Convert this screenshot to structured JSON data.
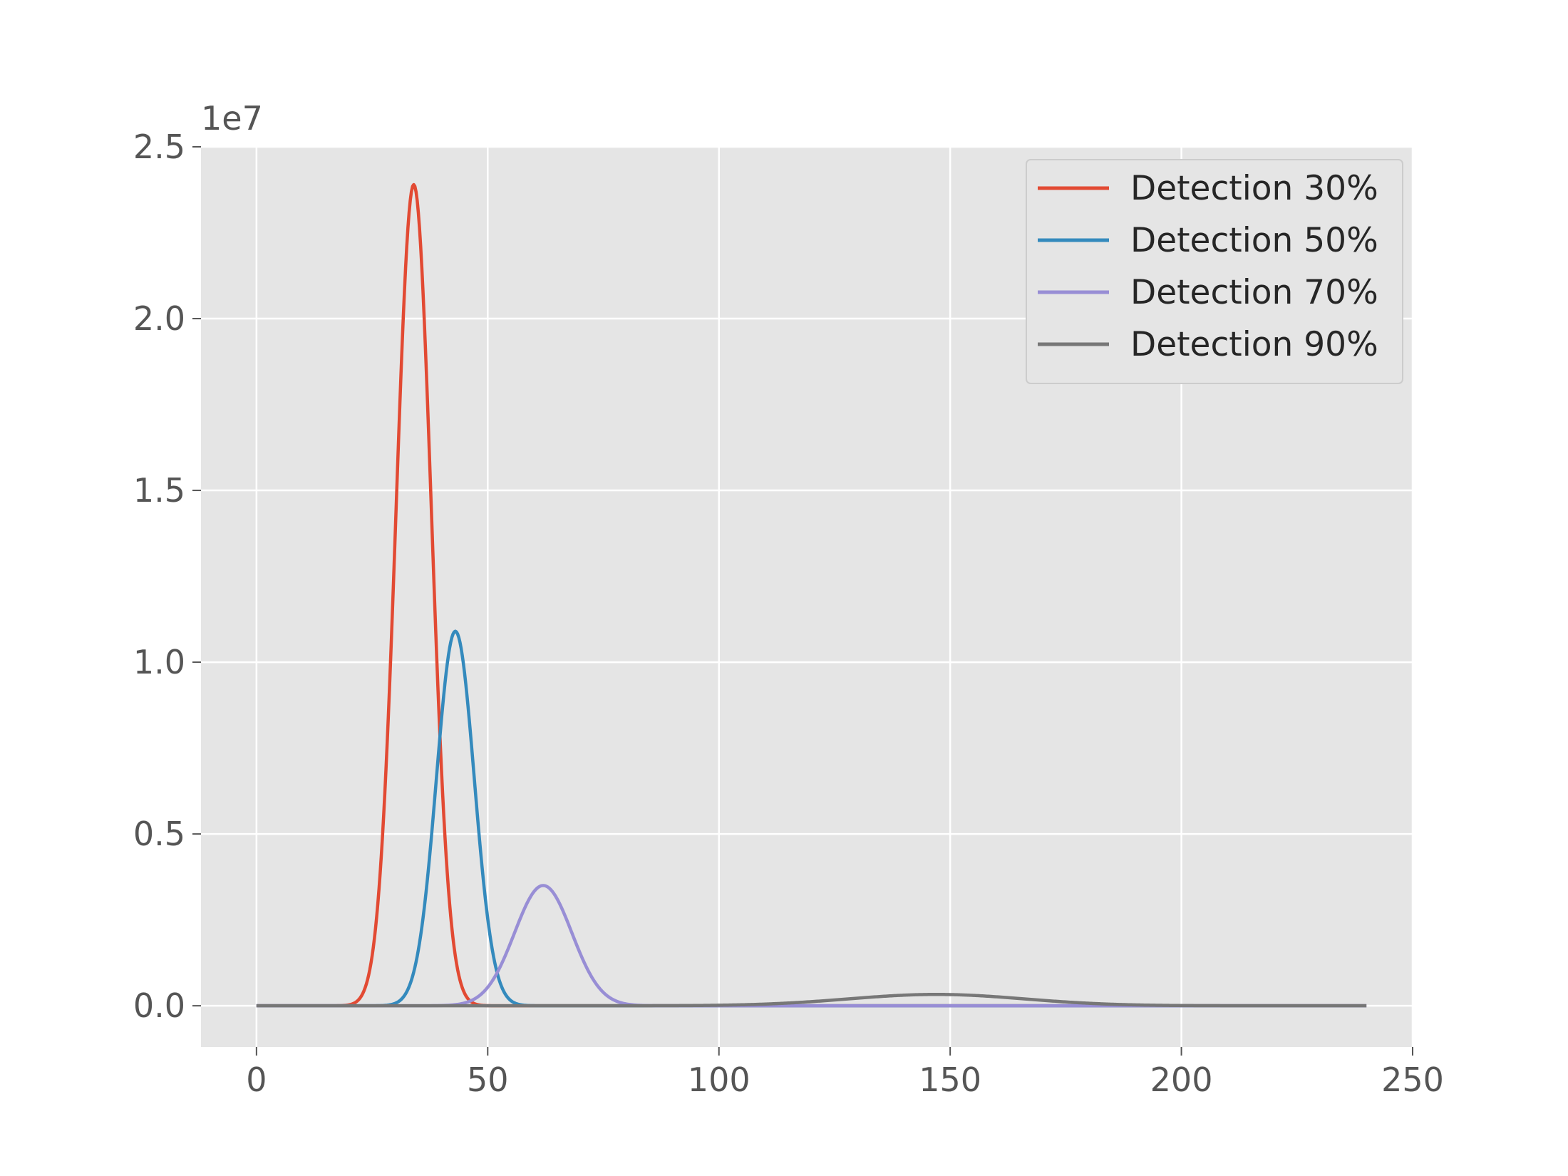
{
  "chart_data": {
    "type": "line",
    "title": "",
    "xlabel": "",
    "ylabel": "",
    "xlim": [
      -12,
      250
    ],
    "ylim": [
      -1200000,
      25000000
    ],
    "x_ticks": [
      0,
      50,
      100,
      150,
      200,
      250
    ],
    "x_tick_labels": [
      "0",
      "50",
      "100",
      "150",
      "200",
      "250"
    ],
    "y_ticks": [
      0,
      5000000,
      10000000,
      15000000,
      20000000,
      25000000
    ],
    "y_tick_labels": [
      "0.0",
      "0.5",
      "1.0",
      "1.5",
      "2.0",
      "2.5"
    ],
    "y_offset_label": "1e7",
    "x_range": [
      0,
      240
    ],
    "grid": true,
    "style": "ggplot",
    "legend_position": "top-right",
    "series": [
      {
        "name": "Detection 30%",
        "color": "#E24A33",
        "peak_x": 34,
        "peak_y": 23900000,
        "sigma": 3.8
      },
      {
        "name": "Detection 50%",
        "color": "#348ABD",
        "peak_x": 43,
        "peak_y": 10900000,
        "sigma": 4.1
      },
      {
        "name": "Detection 70%",
        "color": "#988ED5",
        "peak_x": 62,
        "peak_y": 3500000,
        "sigma": 6.2
      },
      {
        "name": "Detection 90%",
        "color": "#777777",
        "peak_x": 147,
        "peak_y": 330000,
        "sigma": 19
      }
    ]
  }
}
